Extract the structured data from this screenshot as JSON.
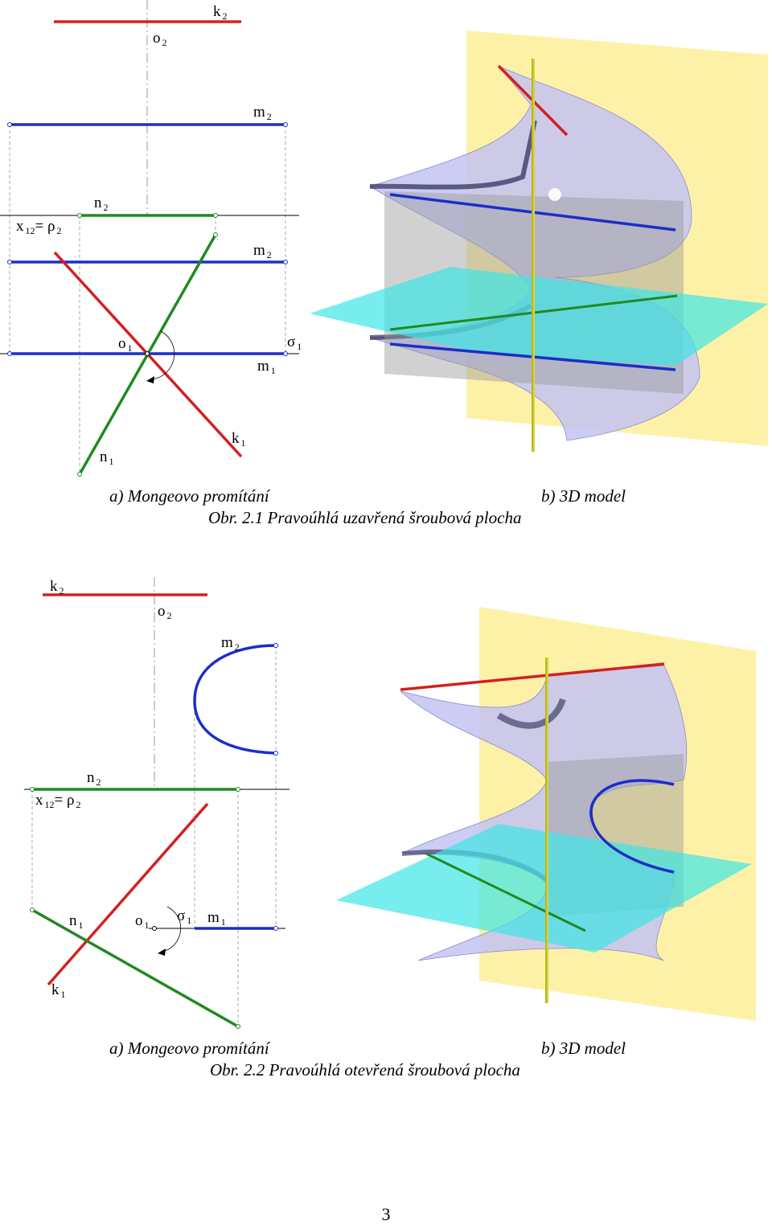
{
  "figures": [
    {
      "labels": {
        "k2": {
          "base": "k",
          "sub": "2"
        },
        "o2": {
          "base": "o",
          "sub": "2"
        },
        "m2_top": {
          "base": "m",
          "sub": "2"
        },
        "n2": {
          "base": "n",
          "sub": "2"
        },
        "x12_rho2": {
          "base": "x",
          "sub": "12",
          "mid": "= ρ",
          "sub2": "2"
        },
        "m2_low": {
          "base": "m",
          "sub": "2"
        },
        "o1": {
          "base": "o",
          "sub": "1"
        },
        "sigma1": {
          "base": "σ",
          "sub": "1"
        },
        "m1": {
          "base": "m",
          "sub": "1"
        },
        "k1": {
          "base": "k",
          "sub": "1"
        },
        "n1": {
          "base": "n",
          "sub": "1"
        }
      },
      "caption_a": "a) Mongeovo promítání",
      "caption_b": "b) 3D model",
      "title": "Obr. 2.1 Pravoúhlá uzavřená šroubová plocha"
    },
    {
      "labels": {
        "k2": {
          "base": "k",
          "sub": "2"
        },
        "o2": {
          "base": "o",
          "sub": "2"
        },
        "m2": {
          "base": "m",
          "sub": "2"
        },
        "n2": {
          "base": "n",
          "sub": "2"
        },
        "x12_rho2": {
          "base": "x",
          "sub": "12",
          "mid": "= ρ",
          "sub2": "2"
        },
        "n1": {
          "base": "n",
          "sub": "1"
        },
        "o1": {
          "base": "o",
          "sub": "1"
        },
        "sigma1": {
          "base": "σ",
          "sub": "1"
        },
        "m1": {
          "base": "m",
          "sub": "1"
        },
        "k1": {
          "base": "k",
          "sub": "1"
        }
      },
      "caption_a": "a) Mongeovo promítání",
      "caption_b": "b) 3D model",
      "title": "Obr. 2.2 Pravoúhlá otevřená šroubová plocha"
    }
  ],
  "page_number": "3",
  "colors": {
    "red": "#d42020",
    "blue": "#1a2fc8",
    "green": "#1f8a1f",
    "yellow_plane": "#fdf1a8",
    "cyan_plane": "#3fe6e6",
    "surface": "#b8b8f0",
    "axis": "#b8b81a"
  }
}
